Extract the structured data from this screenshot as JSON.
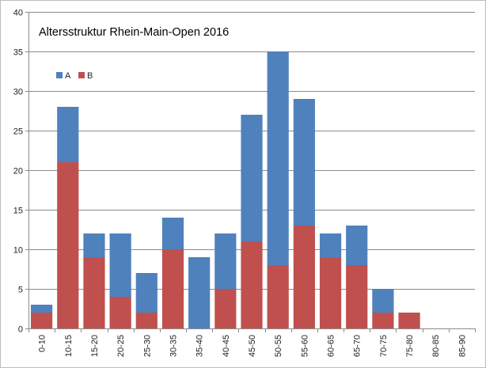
{
  "chart_data": {
    "type": "bar",
    "stacked": true,
    "title": "Altersstruktur Rhein-Main-Open 2016",
    "categories": [
      "0-10",
      "10-15",
      "15-20",
      "20-25",
      "25-30",
      "30-35",
      "35-40",
      "40-45",
      "45-50",
      "50-55",
      "55-60",
      "60-65",
      "65-70",
      "70-75",
      "75-80",
      "80-85",
      "85-90"
    ],
    "series": [
      {
        "name": "B",
        "color": "#c0504d",
        "values": [
          2,
          21,
          9,
          4,
          2,
          10,
          0,
          5,
          11,
          8,
          13,
          9,
          8,
          2,
          2,
          0,
          0
        ]
      },
      {
        "name": "A",
        "color": "#4f81bd",
        "values": [
          1,
          7,
          3,
          8,
          5,
          4,
          9,
          7,
          16,
          27,
          16,
          3,
          5,
          3,
          0,
          0,
          0
        ]
      }
    ],
    "legend_order": [
      "A",
      "B"
    ],
    "legend_position": "top-left",
    "ylim": [
      0,
      40
    ],
    "yticks": [
      0,
      5,
      10,
      15,
      20,
      25,
      30,
      35,
      40
    ],
    "grid": "horizontal",
    "xlabel": "",
    "ylabel": ""
  }
}
